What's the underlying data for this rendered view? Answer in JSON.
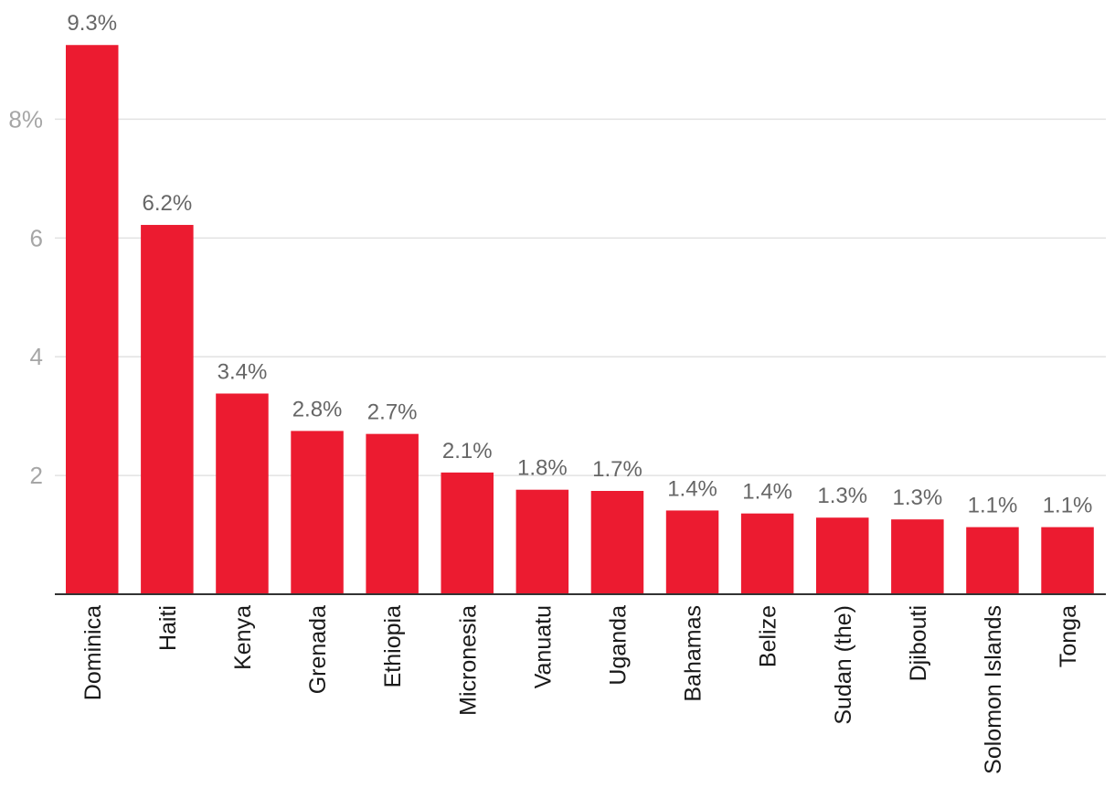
{
  "chart_data": {
    "type": "bar",
    "title": "",
    "xlabel": "",
    "ylabel": "",
    "ylim": [
      0,
      9.3
    ],
    "yticks": [
      2,
      4,
      6,
      8
    ],
    "ytick_labels": [
      "2",
      "4",
      "6",
      "8%"
    ],
    "grid": true,
    "bar_color": "#ec1b30",
    "categories": [
      "Dominica",
      "Haiti",
      "Kenya",
      "Grenada",
      "Ethiopia",
      "Micronesia",
      "Vanuatu",
      "Uganda",
      "Bahamas",
      "Belize",
      "Sudan (the)",
      "Djibouti",
      "Solomon Islands",
      "Tonga"
    ],
    "values": [
      9.25,
      6.22,
      3.38,
      2.75,
      2.7,
      2.05,
      1.76,
      1.74,
      1.41,
      1.36,
      1.29,
      1.26,
      1.13,
      1.13
    ],
    "data_labels": [
      "9.3%",
      "6.2%",
      "3.4%",
      "2.8%",
      "2.7%",
      "2.1%",
      "1.8%",
      "1.7%",
      "1.4%",
      "1.4%",
      "1.3%",
      "1.3%",
      "1.1%",
      "1.1%"
    ]
  }
}
